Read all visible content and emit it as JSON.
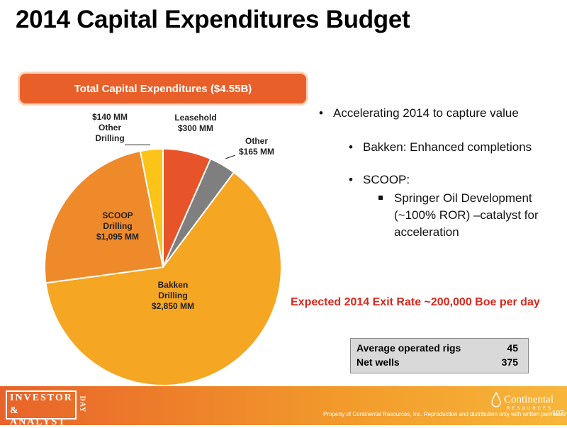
{
  "title": "2014 Capital Expenditures Budget",
  "total_label": "Total Capital Expenditures ($4.55B)",
  "chart_data": {
    "type": "pie",
    "title": "Total Capital Expenditures ($4.55B)",
    "slices": [
      {
        "name": "Leasehold",
        "value": 300,
        "label_lines": [
          "Leasehold",
          "$300 MM"
        ],
        "color": "#e8542a"
      },
      {
        "name": "Other",
        "value": 165,
        "label_lines": [
          "Other",
          "$165 MM"
        ],
        "color": "#7f7f7f"
      },
      {
        "name": "Bakken Drilling",
        "value": 2850,
        "label_lines": [
          "Bakken",
          "Drilling",
          "$2,850 MM"
        ],
        "color": "#f5a623"
      },
      {
        "name": "SCOOP Drilling",
        "value": 1095,
        "label_lines": [
          "SCOOP",
          "Drilling",
          "$1,095 MM"
        ],
        "color": "#ef8a2a"
      },
      {
        "name": "Other Drilling",
        "value": 140,
        "label_lines": [
          "$140 MM",
          "Other",
          "Drilling"
        ],
        "color": "#fcc418"
      }
    ]
  },
  "bullets": {
    "b1": "Accelerating 2014 to capture value",
    "b2": "Bakken:  Enhanced completions",
    "b3": "SCOOP:",
    "b4_l1": "Springer Oil Development",
    "b4_l2": "(~100% ROR) –catalyst for",
    "b4_l3": "acceleration"
  },
  "exit_rate": "Expected 2014 Exit Rate ~200,000 Boe per day",
  "stats": [
    {
      "label": "Average operated rigs",
      "value": "45"
    },
    {
      "label": "Net wells",
      "value": "375"
    }
  ],
  "footer": {
    "ia_line1": "INVESTOR",
    "ia_line2": "& ANALYST",
    "ia_side": "DAY",
    "company": "Continental",
    "company_sub": "RESOURCES",
    "property": "Property of Continental Resources, Inc. Reproduction and distribution only with written permission",
    "page": "107"
  }
}
